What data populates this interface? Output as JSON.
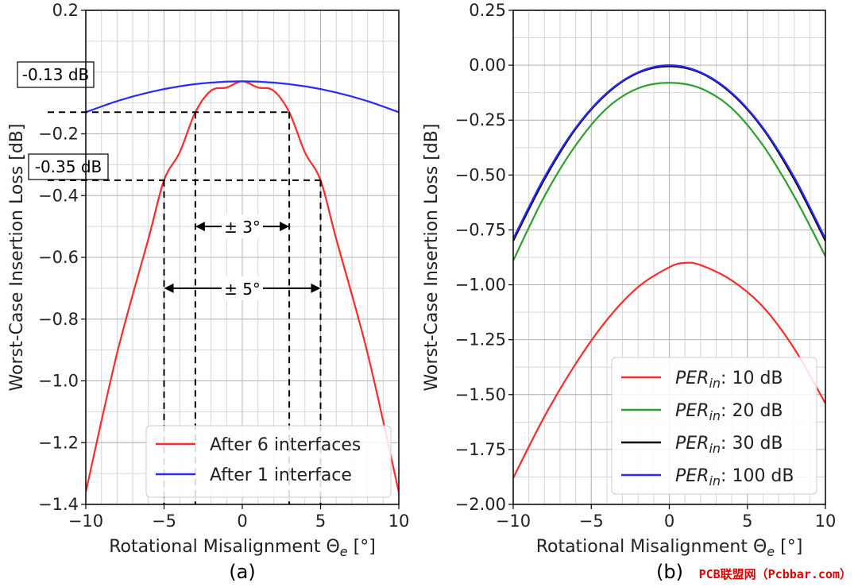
{
  "watermark": "PCB联盟网（Pcbbar.com）",
  "chart_data": [
    {
      "id": "a",
      "type": "line",
      "panel_label": "(a)",
      "xlabel": "Rotational Misalignment Θ",
      "xlabel_sub": "e",
      "xlabel_unit": " [°]",
      "ylabel": "Worst-Case Insertion Loss [dB]",
      "xlim": [
        -10,
        10
      ],
      "ylim": [
        -1.4,
        0.2
      ],
      "xticks": [
        -10,
        -5,
        0,
        5,
        10
      ],
      "xtick_labels": [
        "−10",
        "−5",
        "0",
        "5",
        "10"
      ],
      "yticks": [
        0.2,
        -0.2,
        -0.4,
        -0.6,
        -0.8,
        -1.0,
        -1.2,
        -1.4
      ],
      "ytick_labels": [
        "0.2",
        "−0.2",
        "−0.4",
        "−0.6",
        "−0.8",
        "−1.0",
        "−1.2",
        "−1.4"
      ],
      "minor_grid_step_x": 1,
      "minor_grid_step_y": 0.1,
      "grid": true,
      "legend_position": "lower-right",
      "series": [
        {
          "name": "After 6 interfaces",
          "color": "#ff2a2a",
          "x": [
            -10,
            -8,
            -6,
            -5,
            -4,
            -3,
            -2,
            -1,
            0,
            1,
            2,
            3,
            4,
            5,
            6,
            8,
            10
          ],
          "y": [
            -1.36,
            -0.91,
            -0.54,
            -0.35,
            -0.26,
            -0.13,
            -0.06,
            -0.05,
            -0.03,
            -0.05,
            -0.06,
            -0.13,
            -0.26,
            -0.35,
            -0.54,
            -0.91,
            -1.36
          ]
        },
        {
          "name": "After 1 interface",
          "color": "#2a2aff",
          "x": [
            -10,
            -8,
            -6,
            -4,
            -2,
            0,
            2,
            4,
            6,
            8,
            10
          ],
          "y": [
            -0.13,
            -0.094,
            -0.066,
            -0.046,
            -0.034,
            -0.03,
            -0.034,
            -0.046,
            -0.066,
            -0.094,
            -0.13
          ]
        }
      ],
      "annotations": {
        "label_013": "-0.13 dB",
        "label_035": "-0.35 dB",
        "level_013": -0.13,
        "level_035": -0.35,
        "range_3": {
          "label": "± 3°",
          "half_width": 3,
          "arrow_y": -0.5
        },
        "range_5": {
          "label": "± 5°",
          "half_width": 5,
          "arrow_y": -0.7
        }
      }
    },
    {
      "id": "b",
      "type": "line",
      "panel_label": "(b)",
      "xlabel": "Rotational Misalignment Θ",
      "xlabel_sub": "e",
      "xlabel_unit": " [°]",
      "ylabel": "Worst-Case Insertion Loss [dB]",
      "xlim": [
        -10,
        10
      ],
      "ylim": [
        -2.0,
        0.25
      ],
      "xticks": [
        -10,
        -5,
        0,
        5,
        10
      ],
      "xtick_labels": [
        "−10",
        "−5",
        "0",
        "5",
        "10"
      ],
      "yticks": [
        0.25,
        0.0,
        -0.25,
        -0.5,
        -0.75,
        -1.0,
        -1.25,
        -1.5,
        -1.75,
        -2.0
      ],
      "ytick_labels": [
        "0.25",
        "0.00",
        "−0.25",
        "−0.50",
        "−0.75",
        "−1.00",
        "−1.25",
        "−1.50",
        "−1.75",
        "−2.00"
      ],
      "minor_grid_step_x": 1,
      "minor_grid_step_y": 0.125,
      "grid": true,
      "legend_position": "lower-right",
      "series": [
        {
          "name": "PER",
          "name_sub": "in",
          "name_rest": ": 10 dB",
          "color": "#ff2a2a",
          "x": [
            -10,
            -8,
            -6,
            -4,
            -2,
            0,
            1,
            2,
            4,
            6,
            8,
            10
          ],
          "y": [
            -1.88,
            -1.6,
            -1.36,
            -1.16,
            -1.01,
            -0.92,
            -0.9,
            -0.91,
            -0.98,
            -1.1,
            -1.29,
            -1.54
          ]
        },
        {
          "name": "PER",
          "name_sub": "in",
          "name_rest": ": 20 dB",
          "color": "#2ca02c",
          "x": [
            -10,
            -8,
            -6,
            -4,
            -2,
            0,
            2,
            4,
            6,
            8,
            10
          ],
          "y": [
            -0.89,
            -0.597,
            -0.365,
            -0.196,
            -0.105,
            -0.08,
            -0.105,
            -0.196,
            -0.365,
            -0.597,
            -0.87
          ]
        },
        {
          "name": "PER",
          "name_sub": "in",
          "name_rest": ": 30 dB",
          "color": "#000000",
          "x": [
            -10,
            -8,
            -6,
            -4,
            -2,
            0,
            2,
            4,
            6,
            8,
            10
          ],
          "y": [
            -0.8,
            -0.52,
            -0.29,
            -0.13,
            -0.035,
            -0.005,
            -0.035,
            -0.13,
            -0.29,
            -0.52,
            -0.8
          ]
        },
        {
          "name": "PER",
          "name_sub": "in",
          "name_rest": ": 100 dB",
          "color": "#2a2aff",
          "x": [
            -10,
            -8,
            -6,
            -4,
            -2,
            0,
            2,
            4,
            6,
            8,
            10
          ],
          "y": [
            -0.79,
            -0.51,
            -0.285,
            -0.126,
            -0.032,
            0.0,
            -0.032,
            -0.126,
            -0.285,
            -0.51,
            -0.79
          ]
        }
      ]
    }
  ]
}
